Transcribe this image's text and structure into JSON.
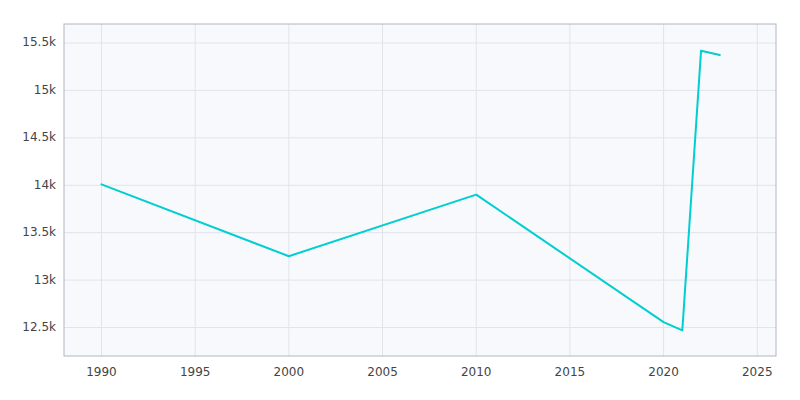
{
  "chart_data": {
    "type": "line",
    "x": [
      1990,
      2000,
      2010,
      2020,
      2021,
      2022,
      2023
    ],
    "values": [
      14010,
      13252,
      13901,
      12557,
      12470,
      15417,
      15374
    ],
    "color": "#00CED1",
    "xlim": [
      1988,
      2026
    ],
    "ylim": [
      12200,
      15700
    ],
    "xticks": [
      1990,
      1995,
      2000,
      2005,
      2010,
      2015,
      2020,
      2025
    ],
    "yticks": [
      {
        "value": 12500,
        "label": "12.5k"
      },
      {
        "value": 13000,
        "label": "13k"
      },
      {
        "value": 13500,
        "label": "13.5k"
      },
      {
        "value": 14000,
        "label": "14k"
      },
      {
        "value": 14500,
        "label": "14.5k"
      },
      {
        "value": 15000,
        "label": "15k"
      },
      {
        "value": 15500,
        "label": "15.5k"
      }
    ],
    "grid": true
  }
}
